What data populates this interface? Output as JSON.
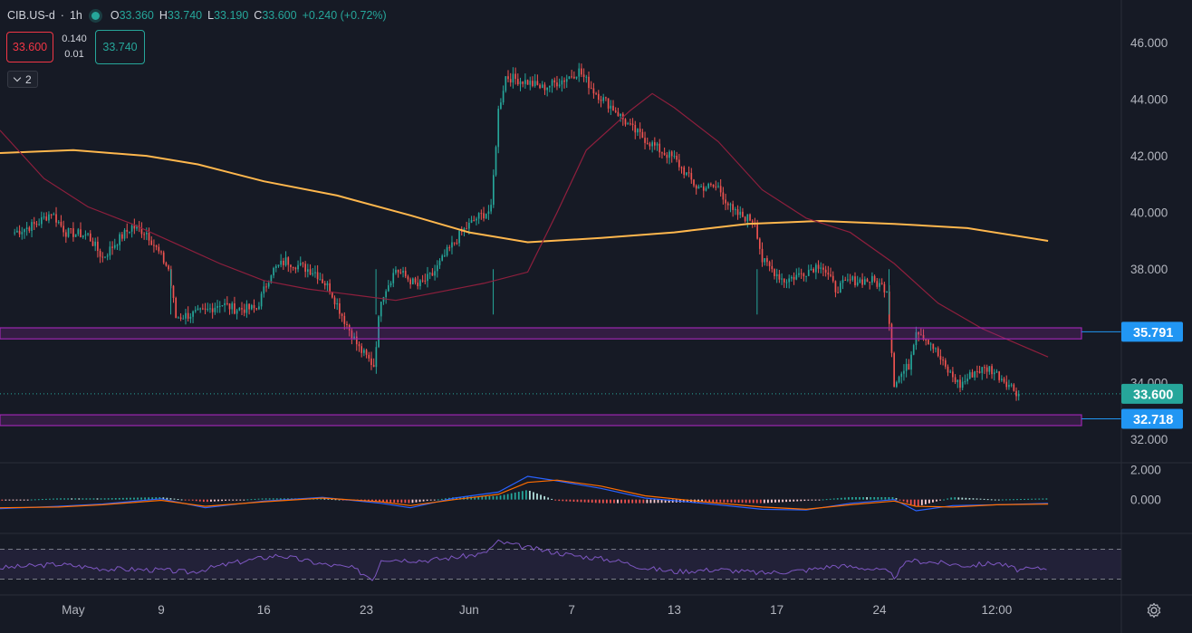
{
  "legend": {
    "symbol": "CIB.US-d",
    "timeframe": "1h",
    "open_label": "O",
    "open": "33.360",
    "high_label": "H",
    "high": "33.740",
    "low_label": "L",
    "low": "33.190",
    "close_label": "C",
    "close": "33.600",
    "change": "+0.240 (+0.72%)",
    "status_color": "#26a69a"
  },
  "trade": {
    "sell": "33.600",
    "spread_top": "0.140",
    "spread_bottom": "0.01",
    "buy": "33.740"
  },
  "indicators_toggle": {
    "count": "2",
    "icon": "chevron-down-icon"
  },
  "settings": {
    "icon": "gear-icon"
  },
  "chart_data": [
    {
      "type": "candlestick",
      "ylim": [
        31.2,
        47.5
      ],
      "yticks": [
        "32.000",
        "34.000",
        "38.000",
        "40.000",
        "42.000",
        "44.000",
        "46.000"
      ],
      "xticks": [
        {
          "x": 8,
          "label": "May"
        },
        {
          "x": 20,
          "label": "9"
        },
        {
          "x": 34,
          "label": "16"
        },
        {
          "x": 48,
          "label": "23"
        },
        {
          "x": 62,
          "label": "Jun"
        },
        {
          "x": 76,
          "label": "7"
        },
        {
          "x": 90,
          "label": "13"
        },
        {
          "x": 104,
          "label": "17"
        },
        {
          "x": 118,
          "label": "24"
        },
        {
          "x": 134,
          "label": "12:00"
        }
      ],
      "x_range": [
        -2,
        151
      ],
      "anchors": [
        [
          0,
          39.3
        ],
        [
          3,
          39.6
        ],
        [
          5,
          40.0
        ],
        [
          7,
          39.3
        ],
        [
          10,
          39.2
        ],
        [
          12,
          38.4
        ],
        [
          14,
          39.0
        ],
        [
          16,
          39.5
        ],
        [
          18,
          39.3
        ],
        [
          21,
          38.0
        ],
        [
          22,
          36.3
        ],
        [
          24,
          36.4
        ],
        [
          26,
          36.5
        ],
        [
          28,
          36.8
        ],
        [
          30,
          36.6
        ],
        [
          33,
          36.6
        ],
        [
          35,
          37.9
        ],
        [
          37,
          38.3
        ],
        [
          39,
          38.1
        ],
        [
          41,
          37.9
        ],
        [
          43,
          37.3
        ],
        [
          45,
          36.2
        ],
        [
          47,
          35.2
        ],
        [
          49,
          34.6
        ],
        [
          50,
          37.0
        ],
        [
          52,
          38.0
        ],
        [
          55,
          37.4
        ],
        [
          57,
          37.8
        ],
        [
          59,
          38.6
        ],
        [
          61,
          39.3
        ],
        [
          63,
          39.8
        ],
        [
          65,
          40.1
        ],
        [
          66,
          43.6
        ],
        [
          67,
          44.8
        ],
        [
          70,
          44.6
        ],
        [
          72,
          44.4
        ],
        [
          75,
          44.7
        ],
        [
          77,
          45.0
        ],
        [
          79,
          44.3
        ],
        [
          82,
          43.6
        ],
        [
          84,
          43.0
        ],
        [
          86,
          42.6
        ],
        [
          88,
          42.2
        ],
        [
          90,
          41.9
        ],
        [
          93,
          40.9
        ],
        [
          96,
          40.9
        ],
        [
          98,
          40.0
        ],
        [
          101,
          39.7
        ],
        [
          102,
          38.3
        ],
        [
          105,
          37.6
        ],
        [
          107,
          37.8
        ],
        [
          110,
          38.2
        ],
        [
          112,
          37.3
        ],
        [
          114,
          37.6
        ],
        [
          117,
          37.6
        ],
        [
          119,
          37.3
        ],
        [
          120,
          34.0
        ],
        [
          122,
          34.6
        ],
        [
          123,
          35.9
        ],
        [
          125,
          35.4
        ],
        [
          127,
          34.5
        ],
        [
          129,
          33.9
        ],
        [
          131,
          34.4
        ],
        [
          133,
          34.5
        ],
        [
          135,
          34.1
        ],
        [
          137,
          33.6
        ]
      ],
      "session_gaps": [
        21,
        49,
        65,
        101,
        119
      ],
      "series": [
        {
          "name": "",
          "color": "#ffb74d",
          "points": [
            [
              -2,
              42.1
            ],
            [
              8,
              42.2
            ],
            [
              18,
              42.0
            ],
            [
              25,
              41.7
            ],
            [
              34,
              41.1
            ],
            [
              44,
              40.6
            ],
            [
              54,
              39.9
            ],
            [
              62,
              39.3
            ],
            [
              70,
              38.95
            ],
            [
              80,
              39.1
            ],
            [
              90,
              39.3
            ],
            [
              100,
              39.6
            ],
            [
              110,
              39.7
            ],
            [
              120,
              39.6
            ],
            [
              130,
              39.45
            ],
            [
              141,
              39.0
            ]
          ]
        },
        {
          "name": "",
          "color": "#8e1f3d",
          "points": [
            [
              -2,
              42.9
            ],
            [
              4,
              41.2
            ],
            [
              10,
              40.2
            ],
            [
              16,
              39.6
            ],
            [
              22,
              38.9
            ],
            [
              28,
              38.2
            ],
            [
              34,
              37.6
            ],
            [
              40,
              37.3
            ],
            [
              46,
              37.1
            ],
            [
              52,
              36.9
            ],
            [
              58,
              37.2
            ],
            [
              64,
              37.5
            ],
            [
              70,
              37.9
            ],
            [
              74,
              40.0
            ],
            [
              78,
              42.2
            ],
            [
              84,
              43.6
            ],
            [
              87,
              44.2
            ],
            [
              90,
              43.7
            ],
            [
              96,
              42.5
            ],
            [
              102,
              40.8
            ],
            [
              108,
              39.8
            ],
            [
              114,
              39.3
            ],
            [
              120,
              38.2
            ],
            [
              126,
              36.8
            ],
            [
              132,
              35.9
            ],
            [
              141,
              34.9
            ]
          ]
        }
      ],
      "zones": [
        {
          "from": 35.54,
          "to": 35.93,
          "color": "#9c27b0"
        },
        {
          "from": 32.48,
          "to": 32.86,
          "color": "#9c27b0"
        }
      ],
      "price_labels": [
        {
          "value": 35.791,
          "label": "35.791",
          "color": "#2196f3"
        },
        {
          "value": 33.6,
          "label": "33.600",
          "color": "#26a69a"
        },
        {
          "value": 32.718,
          "label": "32.718",
          "color": "#2196f3"
        }
      ],
      "last_price": 33.6,
      "grid": false
    },
    {
      "type": "histogram",
      "ylim": [
        -2.2,
        2.4
      ],
      "yticks": [
        "2.000",
        "0.000"
      ],
      "macd": [
        [
          -2,
          -0.6
        ],
        [
          6,
          -0.45
        ],
        [
          12,
          -0.3
        ],
        [
          20,
          0.05
        ],
        [
          26,
          -0.55
        ],
        [
          34,
          -0.1
        ],
        [
          42,
          0.15
        ],
        [
          50,
          -0.25
        ],
        [
          54,
          -0.55
        ],
        [
          60,
          0.1
        ],
        [
          66,
          0.5
        ],
        [
          70,
          1.55
        ],
        [
          74,
          1.25
        ],
        [
          80,
          0.75
        ],
        [
          86,
          0.1
        ],
        [
          94,
          -0.25
        ],
        [
          102,
          -0.65
        ],
        [
          108,
          -0.7
        ],
        [
          114,
          -0.25
        ],
        [
          120,
          0.0
        ],
        [
          123,
          -0.75
        ],
        [
          128,
          -0.4
        ],
        [
          134,
          -0.35
        ],
        [
          141,
          -0.25
        ]
      ],
      "signal": [
        [
          -2,
          -0.55
        ],
        [
          6,
          -0.5
        ],
        [
          12,
          -0.35
        ],
        [
          20,
          -0.05
        ],
        [
          26,
          -0.45
        ],
        [
          34,
          -0.15
        ],
        [
          42,
          0.1
        ],
        [
          50,
          -0.15
        ],
        [
          54,
          -0.4
        ],
        [
          60,
          0.0
        ],
        [
          66,
          0.35
        ],
        [
          70,
          1.15
        ],
        [
          74,
          1.3
        ],
        [
          80,
          0.9
        ],
        [
          86,
          0.25
        ],
        [
          94,
          -0.15
        ],
        [
          102,
          -0.5
        ],
        [
          108,
          -0.65
        ],
        [
          114,
          -0.35
        ],
        [
          120,
          -0.1
        ],
        [
          123,
          -0.45
        ],
        [
          128,
          -0.5
        ],
        [
          134,
          -0.35
        ],
        [
          141,
          -0.3
        ]
      ]
    },
    {
      "type": "line",
      "ylim": [
        10,
        90
      ],
      "bands": [
        30,
        70
      ],
      "rsi": [
        [
          -2,
          45
        ],
        [
          6,
          50
        ],
        [
          12,
          44
        ],
        [
          20,
          42
        ],
        [
          24,
          39
        ],
        [
          30,
          52
        ],
        [
          36,
          62
        ],
        [
          42,
          50
        ],
        [
          46,
          45
        ],
        [
          49,
          30
        ],
        [
          50,
          57
        ],
        [
          56,
          55
        ],
        [
          60,
          59
        ],
        [
          64,
          64
        ],
        [
          66,
          80
        ],
        [
          70,
          72
        ],
        [
          76,
          62
        ],
        [
          82,
          55
        ],
        [
          86,
          45
        ],
        [
          90,
          40
        ],
        [
          96,
          43
        ],
        [
          102,
          38
        ],
        [
          108,
          42
        ],
        [
          112,
          48
        ],
        [
          116,
          45
        ],
        [
          119,
          40
        ],
        [
          120,
          33
        ],
        [
          122,
          55
        ],
        [
          126,
          52
        ],
        [
          130,
          48
        ],
        [
          134,
          52
        ],
        [
          137,
          42
        ],
        [
          141,
          45
        ]
      ],
      "line_color": "#7e57c2"
    }
  ]
}
